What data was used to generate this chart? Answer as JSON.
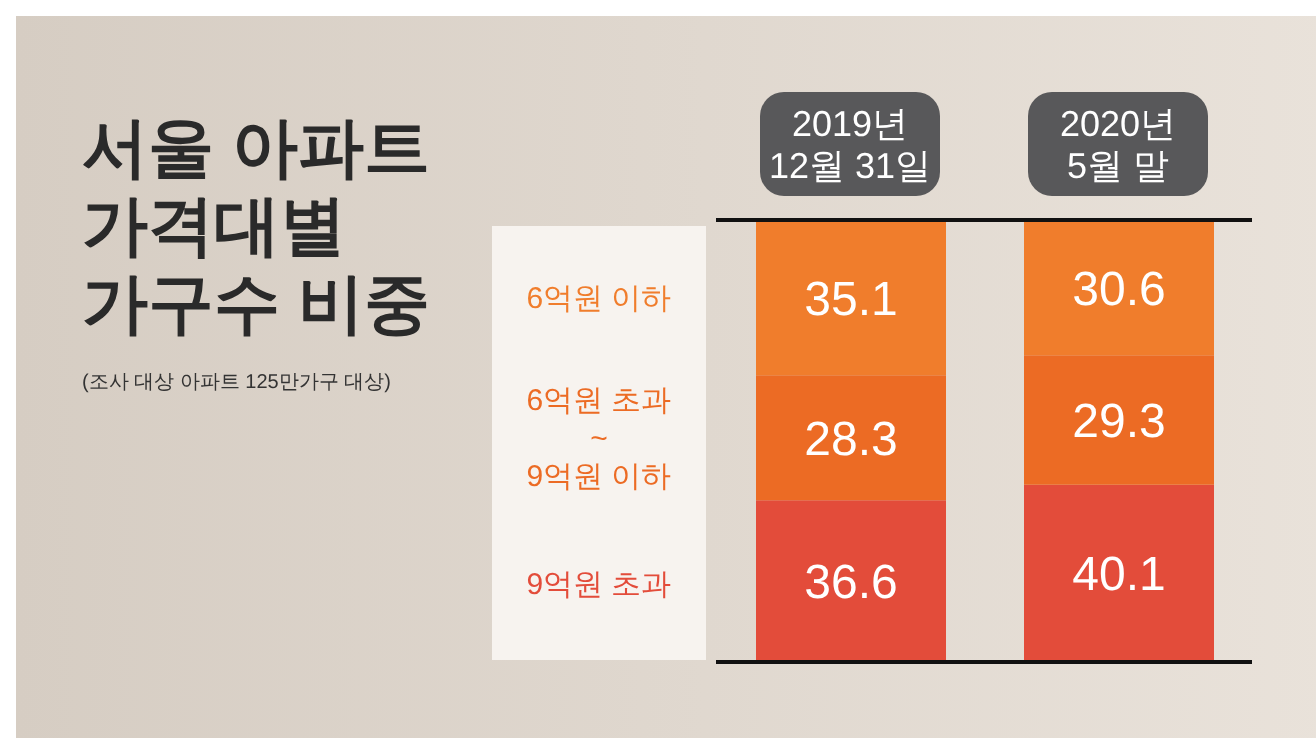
{
  "chart_data": {
    "type": "bar",
    "title": "서울 아파트\n가격대별\n가구수 비중",
    "annotations": [
      "(조사 대상 아파트 125만가구 대상)"
    ],
    "categories": [
      "2019년\n12월 31일",
      "2020년\n5월 말"
    ],
    "stacked": true,
    "data_labels": true,
    "legend": "left",
    "series": [
      {
        "name": "9억원 초과",
        "color": "#e34c3a",
        "values": [
          36.6,
          40.1
        ]
      },
      {
        "name": "6억원 초과\n~\n9억원 이하",
        "color": "#ec6b24",
        "values": [
          28.3,
          29.3
        ]
      },
      {
        "name": "6억원 이하",
        "color": "#f07d2c",
        "values": [
          35.1,
          30.6
        ]
      }
    ]
  }
}
